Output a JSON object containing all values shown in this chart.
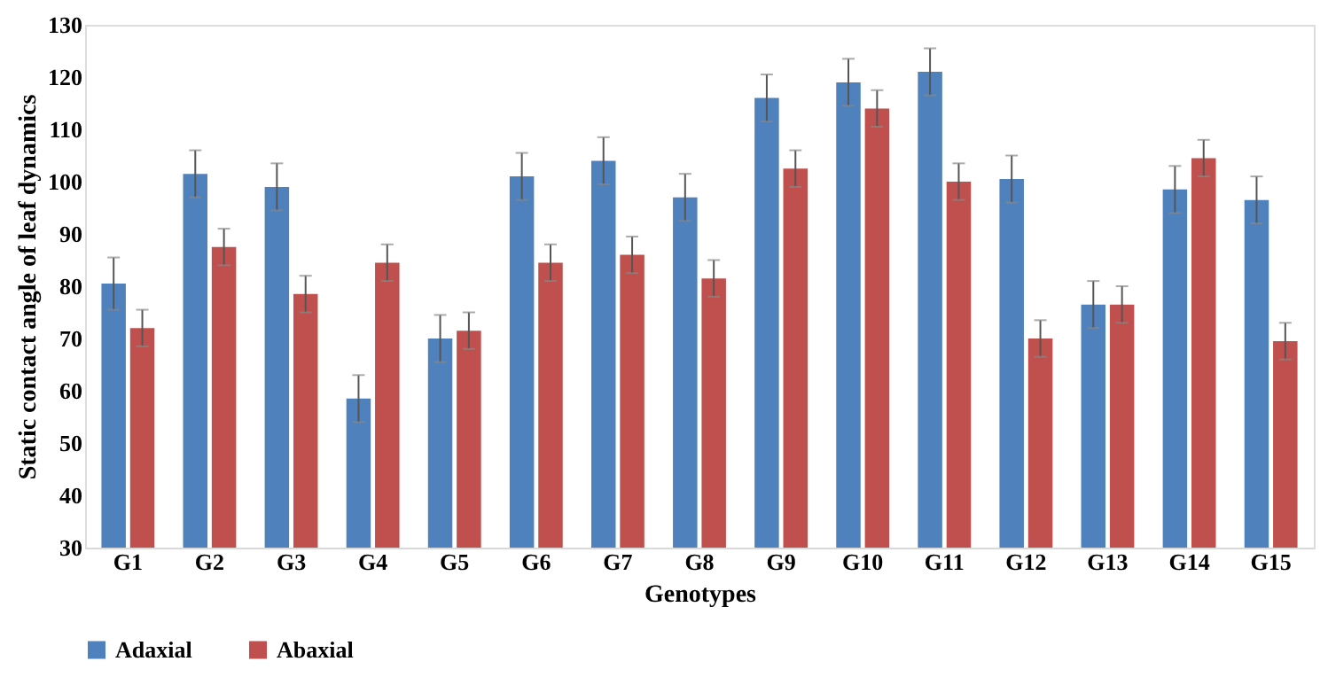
{
  "chart_data": {
    "type": "bar",
    "xlabel": "Genotypes",
    "ylabel": "Static contact angle of leaf dynamics",
    "categories": [
      "G1",
      "G2",
      "G3",
      "G4",
      "G5",
      "G6",
      "G7",
      "G8",
      "G9",
      "G10",
      "G11",
      "G12",
      "G13",
      "G14",
      "G15"
    ],
    "series": [
      {
        "name": "Adaxial",
        "color": "#4f81bd",
        "values": [
          80.5,
          101.5,
          99,
          58.5,
          70,
          101,
          104,
          97,
          116,
          119,
          121,
          100.5,
          76.5,
          98.5,
          96.5
        ],
        "errors": [
          5,
          4.5,
          4.5,
          4.5,
          4.5,
          4.5,
          4.5,
          4.5,
          4.5,
          4.5,
          4.5,
          4.5,
          4.5,
          4.5,
          4.5
        ]
      },
      {
        "name": "Abaxial",
        "color": "#c0504d",
        "values": [
          72,
          87.5,
          78.5,
          84.5,
          71.5,
          84.5,
          86,
          81.5,
          102.5,
          114,
          100,
          70,
          76.5,
          104.5,
          69.5
        ],
        "errors": [
          3.5,
          3.5,
          3.5,
          3.5,
          3.5,
          3.5,
          3.5,
          3.5,
          3.5,
          3.5,
          3.5,
          3.5,
          3.5,
          3.5,
          3.5
        ]
      }
    ],
    "ylim": [
      30,
      130
    ],
    "yticks": [
      30,
      40,
      50,
      60,
      70,
      80,
      90,
      100,
      110,
      120,
      130
    ],
    "grid": false,
    "legend": "bottom"
  }
}
